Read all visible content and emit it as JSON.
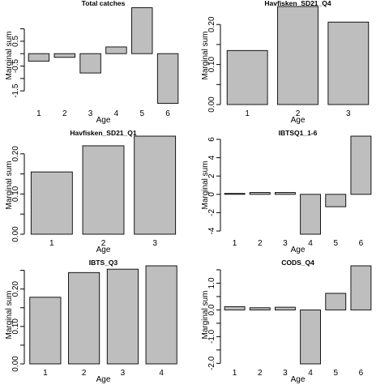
{
  "colors": {
    "bar_fill": "#bebebe",
    "bar_stroke": "#000000",
    "background": "#ffffff"
  },
  "chart_data": [
    {
      "type": "bar",
      "title": "Total catches",
      "xlabel": "Age",
      "ylabel": "Marginal sum",
      "categories": [
        "1",
        "2",
        "3",
        "4",
        "5",
        "6"
      ],
      "values": [
        -0.3,
        -0.15,
        -0.78,
        0.27,
        1.85,
        -2.0
      ],
      "ylim": [
        -2.05,
        1.9
      ],
      "yticks": [
        -1.5,
        -1.0,
        -0.5,
        0.0,
        0.5,
        1.0
      ],
      "yticklabels": [
        "-1.5",
        "",
        "-0.5",
        "",
        "0.5",
        ""
      ],
      "grid": false
    },
    {
      "type": "bar",
      "title": "Havfisken_SD21_Q4",
      "xlabel": "Age",
      "ylabel": "Marginal sum",
      "categories": [
        "1",
        "2",
        "3"
      ],
      "values": [
        0.135,
        0.245,
        0.206
      ],
      "ylim": [
        0,
        0.245
      ],
      "yticks": [
        0.0,
        0.05,
        0.1,
        0.15,
        0.2
      ],
      "yticklabels": [
        "0.00",
        "",
        "0.10",
        "",
        "0.20"
      ],
      "grid": false
    },
    {
      "type": "bar",
      "title": "Havfisken_SD21_Q1",
      "xlabel": "Age",
      "ylabel": "Marginal sum",
      "categories": [
        "1",
        "2",
        "3"
      ],
      "values": [
        0.155,
        0.22,
        0.244
      ],
      "ylim": [
        0,
        0.244
      ],
      "yticks": [
        0.0,
        0.05,
        0.1,
        0.15,
        0.2
      ],
      "yticklabels": [
        "0.00",
        "",
        "0.10",
        "",
        "0.20"
      ],
      "grid": false
    },
    {
      "type": "bar",
      "title": "IBTSQ1_1-6",
      "xlabel": "Age",
      "ylabel": "Marginal sum",
      "categories": [
        "1",
        "2",
        "3",
        "4",
        "5",
        "6"
      ],
      "values": [
        0.1,
        0.2,
        0.2,
        -4.35,
        -1.35,
        6.35
      ],
      "ylim": [
        -4.35,
        6.35
      ],
      "yticks": [
        -4,
        -2,
        0,
        2,
        4,
        6
      ],
      "yticklabels": [
        "-4",
        "-2",
        "0",
        "2",
        "4",
        "6"
      ],
      "grid": false
    },
    {
      "type": "bar",
      "title": "IBTS_Q3",
      "xlabel": "Age",
      "ylabel": "Marginal sum",
      "categories": [
        "1",
        "2",
        "3",
        "4"
      ],
      "values": [
        0.178,
        0.244,
        0.253,
        0.262
      ],
      "ylim": [
        0,
        0.262
      ],
      "yticks": [
        0.0,
        0.05,
        0.1,
        0.15,
        0.2,
        0.25
      ],
      "yticklabels": [
        "0.00",
        "",
        "0.10",
        "",
        "0.20",
        ""
      ],
      "grid": false
    },
    {
      "type": "bar",
      "title": "CODS_Q4",
      "xlabel": "Age",
      "ylabel": "Marginal sum",
      "categories": [
        "1",
        "2",
        "3",
        "4",
        "5",
        "6"
      ],
      "values": [
        0.12,
        0.08,
        0.1,
        -2.02,
        0.62,
        1.65
      ],
      "ylim": [
        -2.02,
        1.65
      ],
      "yticks": [
        -2.0,
        -1.5,
        -1.0,
        -0.5,
        0.0,
        0.5,
        1.0,
        1.5
      ],
      "yticklabels": [
        "-2.0",
        "",
        "-1.0",
        "",
        "0.0",
        "",
        "1.0",
        ""
      ],
      "grid": false
    }
  ]
}
